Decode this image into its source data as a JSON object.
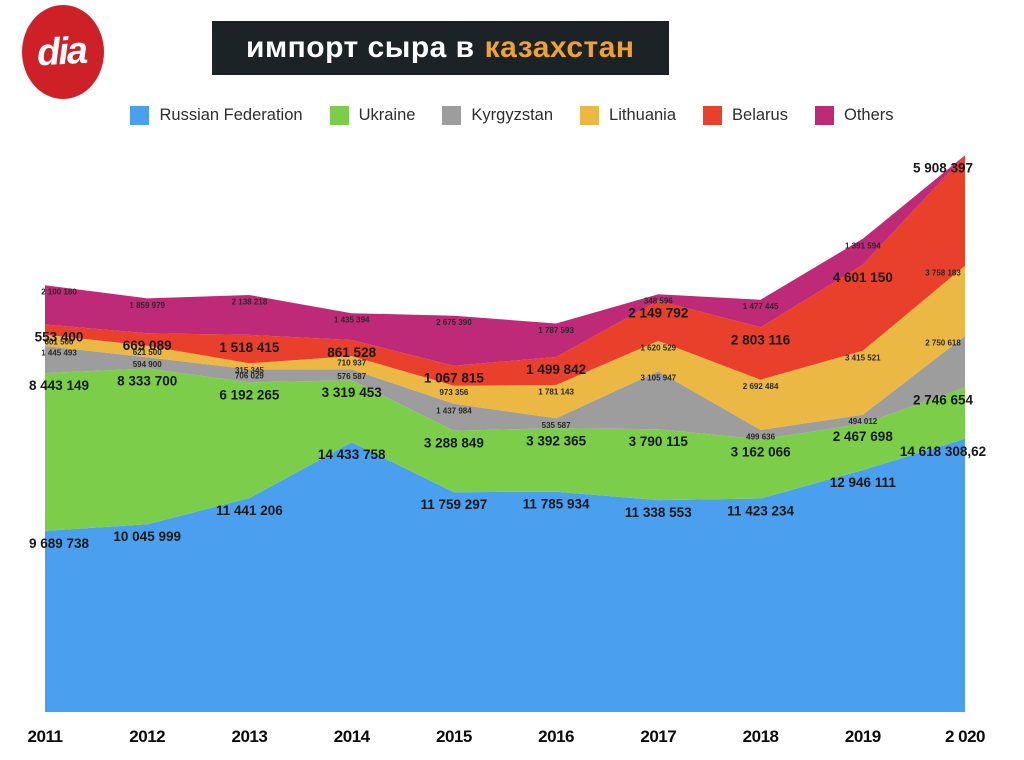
{
  "header": {
    "logo_text": "dia",
    "title_white": "импорт сыра в",
    "title_accent": "казахстан"
  },
  "legend": {
    "position": "top",
    "items": [
      {
        "label": "Russian Federation",
        "color": "#4aa0ef"
      },
      {
        "label": "Ukraine",
        "color": "#7cce4a"
      },
      {
        "label": "Kyrgyzstan",
        "color": "#9d9d9d"
      },
      {
        "label": "Lithuania",
        "color": "#ebb844"
      },
      {
        "label": "Belarus",
        "color": "#e8402b"
      },
      {
        "label": "Others",
        "color": "#be2a78"
      }
    ]
  },
  "chart_data": {
    "type": "area",
    "stacked": true,
    "title": "импорт сыра в казахстан",
    "xlabel": "",
    "ylabel": "",
    "grid": false,
    "ylim": [
      0,
      30500000
    ],
    "x_axis": [
      "2011",
      "2012",
      "2013",
      "2014",
      "2015",
      "2016",
      "2017",
      "2018",
      "2019",
      "2 020"
    ],
    "series": [
      {
        "id": "russian-federation",
        "name": "Russian Federation",
        "color": "#4aa0ef",
        "label_style": "big",
        "values": [
          9689738,
          10045999,
          11441206,
          14433758,
          11759297,
          11785934,
          11338553,
          11423234,
          12946111,
          14618308.62
        ],
        "labels": [
          "9 689 738",
          "10 045 999",
          "11 441 206",
          "14 433 758",
          "11 759 297",
          "11 785 934",
          "11 338 553",
          "11 423 234",
          "12 946 111",
          "14 618 308,62"
        ]
      },
      {
        "id": "ukraine",
        "name": "Ukraine",
        "color": "#7cce4a",
        "label_style": "big",
        "values": [
          8443149,
          8333700,
          6192265,
          3319453,
          3288849,
          3392365,
          3790115,
          3162066,
          2467698,
          2746654
        ],
        "labels": [
          "8 443 149",
          "8 333 700",
          "6 192 265",
          "3 319 453",
          "3 288 849",
          "3 392 365",
          "3 790 115",
          "3 162 066",
          "2 467 698",
          "2 746 654"
        ]
      },
      {
        "id": "kyrgyzstan",
        "name": "Kyrgyzstan",
        "color": "#9d9d9d",
        "label_style": "small",
        "values": [
          1445493,
          594900,
          706029,
          576587,
          1437984,
          535587,
          3105947,
          499636,
          494012,
          2750618
        ],
        "labels": [
          "1 445 493",
          "594 900",
          "706 029",
          "576 587",
          "1 437 984",
          "535 587",
          "3 105 947",
          "499 636",
          "494 012",
          "2 750 618"
        ]
      },
      {
        "id": "lithuania",
        "name": "Lithuania",
        "color": "#ebb844",
        "label_style": "small",
        "values": [
          601500,
          621500,
          315345,
          710937,
          973356,
          1781143,
          1620529,
          2692484,
          3415521,
          3758183
        ],
        "labels": [
          "601 500",
          "621 500",
          "315 345",
          "710 937",
          "973 356",
          "1 781 143",
          "1 620 529",
          "2 692 484",
          "3 415 521",
          "3 758 183"
        ],
        "label_colors": {
          "6": "#df9a3b",
          "9": "#f3ece4"
        }
      },
      {
        "id": "belarus",
        "name": "Belarus",
        "color": "#e8402b",
        "label_style": "big",
        "values": [
          553400,
          669089,
          1518415,
          861528,
          1067815,
          1499842,
          2149792,
          2803116,
          4601150,
          5908397
        ],
        "labels": [
          "553 400",
          "669 089",
          "1 518 415",
          "861 528",
          "1 067 815",
          "1 499 842",
          "2 149 792",
          "2 803 116",
          "4 601 150",
          "5 908 397"
        ],
        "label_sizes": {
          "0": 17
        }
      },
      {
        "id": "others",
        "name": "Others",
        "color": "#be2a78",
        "label_style": "small",
        "values": [
          2100180,
          1859979,
          2138218,
          1435394,
          2675390,
          1787593,
          348596,
          1477445,
          1391594,
          0
        ],
        "labels": [
          "2 100 180",
          "1 859 979",
          "2 138 218",
          "1 435 394",
          "2 675 390",
          "1 787 593",
          "348 596",
          "1 477 445",
          "1 391 594",
          null
        ]
      }
    ]
  }
}
